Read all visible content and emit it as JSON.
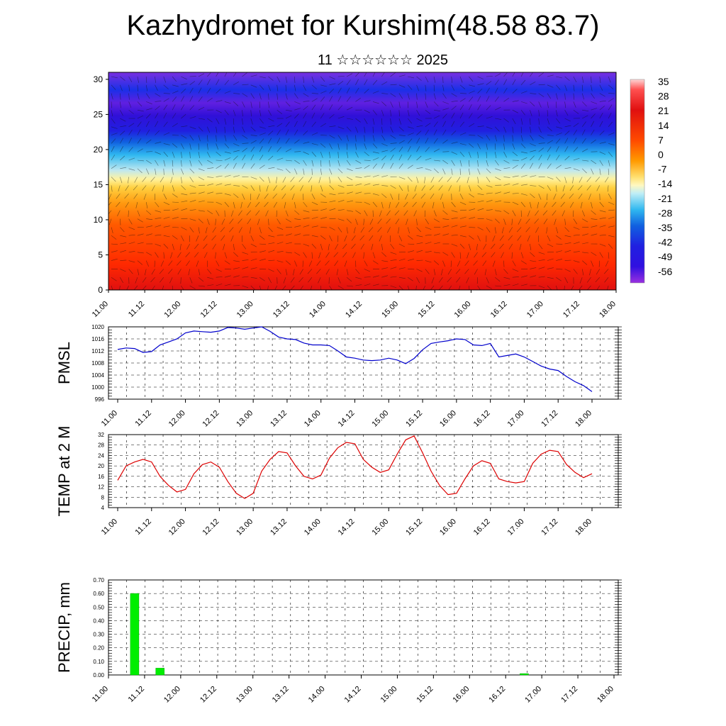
{
  "title": "Kazhydromet for Kurshim(48.58 83.7)",
  "subtitle": "11 ☆☆☆☆☆☆ 2025",
  "time_labels": [
    "11.00",
    "11.12",
    "12.00",
    "12.12",
    "13.00",
    "13.12",
    "14.00",
    "14.12",
    "15.00",
    "15.12",
    "16.00",
    "16.12",
    "17.00",
    "17.12",
    "18.00"
  ],
  "chart_data": [
    {
      "type": "heatmap",
      "title": "",
      "ylabel": "",
      "x_ticks": [
        "11.00",
        "11.12",
        "12.00",
        "12.12",
        "13.00",
        "13.12",
        "14.00",
        "14.12",
        "15.00",
        "15.12",
        "16.00",
        "16.12",
        "17.00",
        "17.12",
        "18.00"
      ],
      "y_ticks": [
        0,
        5,
        10,
        15,
        20,
        25,
        30
      ],
      "ylim": [
        0,
        31
      ],
      "colorbar_labels": [
        "35",
        "28",
        "21",
        "14",
        "7",
        "0",
        "-7",
        "-14",
        "-21",
        "-28",
        "-35",
        "-42",
        "-49",
        "-56"
      ],
      "colorbar_colors": [
        "#ffd6d6",
        "#ff4040",
        "#e01010",
        "#ff2a00",
        "#ff6a00",
        "#ffa000",
        "#ffd040",
        "#fff090",
        "#b0e8f0",
        "#40c0f0",
        "#1080e0",
        "#2040e0",
        "#3010e0",
        "#9030e0"
      ],
      "note_levels_km": [
        0,
        30
      ]
    },
    {
      "type": "line",
      "ylabel": "PMSL",
      "ylim": [
        996,
        1020
      ],
      "y_ticks": [
        996,
        1000,
        1004,
        1008,
        1012,
        1016,
        1020
      ],
      "color": "#0000cc",
      "x": [
        0,
        1,
        2,
        3,
        4,
        5,
        6,
        7,
        8,
        9,
        10,
        11,
        12,
        13,
        14,
        15,
        16,
        17,
        18,
        19,
        20,
        21,
        22,
        23,
        24,
        25,
        26,
        27,
        28,
        29,
        30,
        31,
        32,
        33,
        34,
        35,
        36,
        37,
        38,
        39,
        40,
        41,
        42,
        43,
        44,
        45,
        46,
        47,
        48,
        49,
        50,
        51,
        52,
        53,
        54,
        55,
        56
      ],
      "values": [
        1012.5,
        1013,
        1012.8,
        1011.5,
        1011.8,
        1014,
        1015,
        1016,
        1018,
        1018.6,
        1018.4,
        1018.2,
        1018.6,
        1019.8,
        1019.6,
        1019.2,
        1019.6,
        1020,
        1018.5,
        1016.6,
        1016,
        1015.8,
        1014.6,
        1014,
        1014,
        1013.8,
        1012,
        1010,
        1009.6,
        1009,
        1008.8,
        1009,
        1009.6,
        1009,
        1007.8,
        1009.5,
        1012.4,
        1014.5,
        1015,
        1015.4,
        1016,
        1015.8,
        1014,
        1013.8,
        1014.5,
        1010,
        1010.5,
        1011,
        1010,
        1008.5,
        1007,
        1006,
        1005.5,
        1003.5,
        1001.8,
        1000.5,
        998.5
      ],
      "xlim": [
        0,
        56
      ]
    },
    {
      "type": "line",
      "ylabel": "TEMP at 2 M",
      "ylim": [
        4,
        32
      ],
      "y_ticks": [
        4,
        8,
        12,
        16,
        20,
        24,
        28,
        32
      ],
      "color": "#dd0000",
      "x": [
        0,
        1,
        2,
        3,
        4,
        5,
        6,
        7,
        8,
        9,
        10,
        11,
        12,
        13,
        14,
        15,
        16,
        17,
        18,
        19,
        20,
        21,
        22,
        23,
        24,
        25,
        26,
        27,
        28,
        29,
        30,
        31,
        32,
        33,
        34,
        35,
        36,
        37,
        38,
        39,
        40,
        41,
        42,
        43,
        44,
        45,
        46,
        47,
        48,
        49,
        50,
        51,
        52,
        53,
        54,
        55,
        56
      ],
      "values": [
        14.5,
        20,
        21.5,
        22.5,
        21.5,
        16,
        12.5,
        10,
        11,
        17,
        20.5,
        21.5,
        19.5,
        14,
        9.5,
        7.5,
        9.5,
        18,
        22.5,
        25.5,
        25,
        20,
        16,
        15,
        16.5,
        23,
        27,
        29,
        28.5,
        22.5,
        19.5,
        17.5,
        18.5,
        24.5,
        30,
        31.5,
        25,
        18,
        12.5,
        9,
        9.5,
        15,
        20,
        22,
        21,
        15,
        14,
        13.5,
        14,
        21,
        24.5,
        26,
        25.5,
        20.5,
        17.5,
        15.5,
        17
      ],
      "xlim": [
        0,
        56
      ]
    },
    {
      "type": "bar",
      "ylabel": "PRECIP, mm",
      "ylim": [
        0,
        0.7
      ],
      "y_ticks": [
        "0.00",
        "0.10",
        "0.20",
        "0.30",
        "0.40",
        "0.50",
        "0.60",
        "0.70"
      ],
      "color": "#00ee00",
      "x": [
        0,
        1,
        2,
        3,
        4,
        5,
        6,
        7,
        8,
        9,
        10,
        11,
        12,
        13,
        14,
        15,
        16,
        17,
        18,
        19,
        20,
        21,
        22,
        23,
        24,
        25,
        26,
        27,
        28,
        29,
        30,
        31,
        32,
        33,
        34,
        35,
        36,
        37,
        38,
        39,
        40,
        41,
        42,
        43,
        44,
        45,
        46,
        47,
        48,
        49,
        50,
        51,
        52,
        53,
        54,
        55,
        56
      ],
      "values": [
        0,
        0,
        0.6,
        0,
        0,
        0.05,
        0,
        0,
        0,
        0,
        0,
        0,
        0,
        0,
        0,
        0,
        0,
        0,
        0,
        0,
        0,
        0,
        0,
        0,
        0,
        0,
        0,
        0,
        0,
        0,
        0,
        0,
        0,
        0,
        0,
        0,
        0,
        0,
        0,
        0,
        0,
        0,
        0,
        0,
        0,
        0,
        0,
        0,
        0.01,
        0,
        0,
        0,
        0,
        0,
        0,
        0,
        0
      ],
      "xlim": [
        -1,
        57
      ]
    }
  ]
}
